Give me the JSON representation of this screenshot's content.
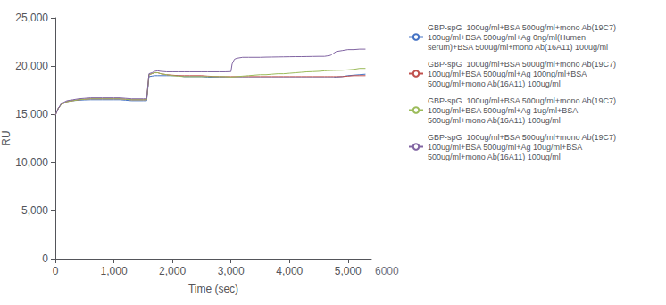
{
  "chart_data": {
    "type": "line",
    "xlabel": "Time (sec)",
    "ylabel": "RU",
    "xlim": [
      0,
      5400
    ],
    "ylim": [
      0,
      25000
    ],
    "xticks": [
      0,
      1000,
      2000,
      3000,
      4000,
      5000
    ],
    "yticks": [
      0,
      5000,
      10000,
      15000,
      20000,
      25000
    ],
    "grid": false,
    "legend": "right",
    "annotations": [
      "6000"
    ],
    "series": [
      {
        "name": "GBP-spG  100ug/ml+BSA 500ug/ml+mono Ab(19C7)\n100ug/ml+BSA 500ug/ml+Ag 0ng/ml(Humen\nserum)+BSA 500ug/ml+mono Ab(16A11) 100ug/ml",
        "color": "#4472C4",
        "x": [
          0,
          50,
          100,
          200,
          300,
          400,
          500,
          600,
          700,
          800,
          900,
          1000,
          1100,
          1200,
          1300,
          1400,
          1500,
          1560,
          1600,
          1650,
          1700,
          1750,
          1800,
          1900,
          2000,
          2100,
          2200,
          2300,
          2400,
          2500,
          2600,
          2700,
          2800,
          2900,
          3000,
          3100,
          3200,
          3300,
          3400,
          3500,
          3600,
          3700,
          3800,
          3900,
          4000,
          4100,
          4200,
          4300,
          4400,
          4500,
          4600,
          4650,
          4700,
          4750,
          4800,
          4900,
          5000,
          5100,
          5200,
          5300
        ],
        "values": [
          14900,
          15600,
          16000,
          16300,
          16400,
          16450,
          16480,
          16500,
          16500,
          16500,
          16500,
          16500,
          16500,
          16450,
          16400,
          16400,
          16400,
          16400,
          18900,
          18950,
          19000,
          19000,
          19000,
          19000,
          19000,
          19000,
          18900,
          18900,
          18900,
          18900,
          18850,
          18830,
          18820,
          18810,
          18800,
          18800,
          18800,
          18800,
          18800,
          18800,
          18800,
          18800,
          18800,
          18800,
          18800,
          18800,
          18800,
          18800,
          18800,
          18800,
          18800,
          18800,
          18800,
          18800,
          18850,
          18900,
          19000,
          19050,
          19100,
          19150
        ]
      },
      {
        "name": "GBP-spG  100ug/ml+BSA 500ug/ml+mono Ab(19C7)\n100ug/ml+BSA 500ug/ml+Ag 100ng/ml+BSA\n500ug/ml+mono Ab(16A11) 100ug/ml",
        "color": "#C0504D",
        "x": [
          0,
          50,
          100,
          200,
          300,
          400,
          500,
          600,
          700,
          800,
          900,
          1000,
          1100,
          1200,
          1300,
          1400,
          1500,
          1560,
          1600,
          1650,
          1700,
          1750,
          1800,
          1900,
          2000,
          2100,
          2200,
          2300,
          2400,
          2500,
          2600,
          2700,
          2800,
          2900,
          3000,
          3100,
          3200,
          3300,
          3400,
          3500,
          3600,
          3700,
          3800,
          3900,
          4000,
          4100,
          4200,
          4300,
          4400,
          4500,
          4600,
          4650,
          4700,
          4750,
          4800,
          4900,
          5000,
          5100,
          5200,
          5300
        ],
        "values": [
          14900,
          15600,
          16000,
          16300,
          16400,
          16500,
          16550,
          16600,
          16600,
          16600,
          16600,
          16600,
          16600,
          16550,
          16500,
          16500,
          16500,
          16500,
          19100,
          19200,
          19300,
          19300,
          19200,
          19100,
          19050,
          19000,
          19000,
          19000,
          19000,
          19000,
          18950,
          18920,
          18910,
          18900,
          18900,
          18900,
          18900,
          18900,
          18900,
          18900,
          18900,
          18900,
          18900,
          18900,
          18900,
          18900,
          18900,
          18900,
          18900,
          18900,
          18900,
          18900,
          18900,
          18900,
          18900,
          18900,
          18950,
          19000,
          19000,
          19000
        ]
      },
      {
        "name": "GBP-spG  100ug/ml+BSA 500ug/ml+mono Ab(19C7)\n100ug/ml+BSA 500ug/ml+Ag 1ug/ml+BSA\n500ug/ml+mono Ab(16A11) 100ug/ml",
        "color": "#9BBB59",
        "x": [
          0,
          50,
          100,
          200,
          300,
          400,
          500,
          600,
          700,
          800,
          900,
          1000,
          1100,
          1200,
          1300,
          1400,
          1500,
          1560,
          1600,
          1650,
          1700,
          1750,
          1800,
          1900,
          2000,
          2100,
          2200,
          2300,
          2400,
          2500,
          2600,
          2700,
          2800,
          2900,
          3000,
          3100,
          3200,
          3300,
          3400,
          3500,
          3600,
          3700,
          3800,
          3900,
          4000,
          4100,
          4200,
          4300,
          4400,
          4500,
          4600,
          4650,
          4700,
          4750,
          4800,
          4900,
          5000,
          5100,
          5200,
          5300
        ],
        "values": [
          14900,
          15600,
          16000,
          16300,
          16400,
          16500,
          16550,
          16600,
          16600,
          16600,
          16600,
          16600,
          16600,
          16550,
          16500,
          16500,
          16500,
          16500,
          19100,
          19200,
          19300,
          19300,
          19200,
          19100,
          19000,
          18950,
          18900,
          18900,
          18900,
          18900,
          18900,
          18900,
          18900,
          18900,
          18850,
          18900,
          18950,
          19000,
          19050,
          19100,
          19100,
          19150,
          19200,
          19200,
          19250,
          19300,
          19350,
          19400,
          19420,
          19450,
          19500,
          19520,
          19530,
          19540,
          19550,
          19560,
          19600,
          19650,
          19750,
          19750
        ]
      },
      {
        "name": "GBP-spG  100ug/ml+BSA 500ug/ml+mono Ab(19C7)\n100ug/ml+BSA 500ug/ml+Ag 10ug/ml+BSA\n500ug/ml+mono Ab(16A11) 100ug/ml",
        "color": "#8064A2",
        "x": [
          0,
          50,
          100,
          200,
          300,
          400,
          500,
          600,
          700,
          800,
          900,
          1000,
          1100,
          1200,
          1300,
          1400,
          1500,
          1560,
          1600,
          1650,
          1700,
          1750,
          1800,
          1900,
          2000,
          2100,
          2200,
          2300,
          2400,
          2500,
          2600,
          2700,
          2800,
          2900,
          3000,
          3020,
          3060,
          3100,
          3200,
          3300,
          3400,
          3500,
          3600,
          3700,
          3800,
          3900,
          4000,
          4100,
          4200,
          4300,
          4400,
          4500,
          4600,
          4650,
          4700,
          4750,
          4800,
          4900,
          5000,
          5100,
          5200,
          5300
        ],
        "values": [
          14900,
          15600,
          16100,
          16400,
          16500,
          16600,
          16650,
          16700,
          16700,
          16700,
          16700,
          16700,
          16700,
          16650,
          16600,
          16600,
          16600,
          16600,
          19200,
          19300,
          19450,
          19500,
          19450,
          19400,
          19400,
          19400,
          19400,
          19400,
          19400,
          19400,
          19400,
          19400,
          19400,
          19400,
          19420,
          20200,
          20700,
          20800,
          20900,
          20900,
          20900,
          20900,
          20920,
          20930,
          20940,
          20950,
          20960,
          20970,
          20970,
          20980,
          20990,
          21000,
          21000,
          21050,
          21100,
          21300,
          21500,
          21600,
          21700,
          21700,
          21750,
          21750
        ]
      }
    ]
  }
}
